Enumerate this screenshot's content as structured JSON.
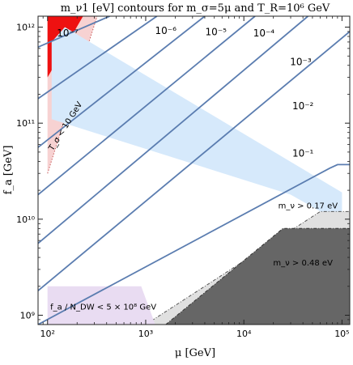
{
  "chart_data": {
    "type": "line",
    "title": "m_ν1 [eV] contours for m_σ=5μ and T_R=10⁶ GeV",
    "xlabel": "μ [GeV]",
    "ylabel": "f_a [GeV]",
    "xscale": "log",
    "yscale": "log",
    "xlim": [
      80,
      120000
    ],
    "ylim": [
      800000000,
      1300000000000
    ],
    "grid": false,
    "x_ticks": [
      {
        "value": 100,
        "label": "10²"
      },
      {
        "value": 1000,
        "label": "10³"
      },
      {
        "value": 10000,
        "label": "10⁴"
      },
      {
        "value": 100000,
        "label": "10⁵"
      }
    ],
    "y_ticks": [
      {
        "value": 1000000000,
        "label": "10⁹"
      },
      {
        "value": 10000000000,
        "label": "10¹⁰"
      },
      {
        "value": 100000000000,
        "label": "10¹¹"
      },
      {
        "value": 1000000000000,
        "label": "10¹²"
      }
    ],
    "contours": [
      {
        "label": "10⁻⁷",
        "line": [
          [
            80,
            620000000000
          ],
          [
            430,
            1300000000000
          ]
        ],
        "label_at": [
          160,
          800000000000
        ]
      },
      {
        "label": "10⁻⁶",
        "line": [
          [
            80,
            180000000000
          ],
          [
            1300,
            1300000000000
          ]
        ],
        "label_at": [
          1600,
          850000000000
        ]
      },
      {
        "label": "10⁻⁵",
        "line": [
          [
            80,
            56000000000
          ],
          [
            4000,
            1300000000000
          ]
        ],
        "label_at": [
          5200,
          820000000000
        ]
      },
      {
        "label": "10⁻⁴",
        "line": [
          [
            80,
            18000000000
          ],
          [
            13000,
            1300000000000
          ]
        ],
        "label_at": [
          16000,
          800000000000
        ]
      },
      {
        "label": "10⁻³",
        "line": [
          [
            80,
            5600000000
          ],
          [
            45000,
            1300000000000
          ]
        ],
        "label_at": [
          38000,
          400000000000
        ]
      },
      {
        "label": "10⁻²",
        "line": [
          [
            80,
            1800000000
          ],
          [
            120000,
            900000000000
          ]
        ],
        "label_at": [
          40000,
          140000000000
        ]
      },
      {
        "label": "10⁻¹",
        "line": [
          [
            80,
            800000000
          ],
          [
            75000,
            34000000000
          ],
          [
            90000,
            37000000000
          ],
          [
            120000,
            37000000000
          ]
        ],
        "label_at": [
          40000,
          45000000000
        ]
      }
    ],
    "regions": [
      {
        "label": "T_σ < 10 GeV",
        "color": "#f7d2d2",
        "boundary": [
          [
            100,
            30000000000
          ],
          [
            320,
            1300000000000
          ]
        ]
      },
      {
        "label": "",
        "color": "#ee1111",
        "boundary": [
          [
            100,
            300000000000
          ],
          [
            230,
            1300000000000
          ]
        ]
      },
      {
        "label": "",
        "color": "#d6e9fb",
        "boundary": [
          [
            100,
            1000000000000
          ],
          [
            100000,
            18000000000
          ]
        ]
      },
      {
        "label": "m_ν > 0.17 eV",
        "color": "#e0e0e0",
        "boundary": [
          [
            1000,
            800000000
          ],
          [
            60000,
            12000000000
          ],
          [
            100000,
            12000000000
          ]
        ]
      },
      {
        "label": "m_ν > 0.48 eV",
        "color": "#666666",
        "boundary": [
          [
            1600,
            800000000
          ],
          [
            25000,
            8000000000
          ],
          [
            100000,
            8000000000
          ]
        ]
      },
      {
        "label": "f_a / N_DW < 5 × 10⁸ GeV",
        "color": "#e9dcf2",
        "boundary": [
          [
            100,
            800000000
          ],
          [
            100,
            2000000000
          ],
          [
            900,
            2000000000
          ]
        ]
      }
    ],
    "colors": {
      "contour": "#5b7db0",
      "red_region": "#ee1111",
      "pink_region": "#f7d2d2",
      "blue_region": "#d6e9fb",
      "light_gray_region": "#e0e0e0",
      "dark_gray_region": "#666666",
      "purple_region": "#e9dcf2"
    }
  }
}
